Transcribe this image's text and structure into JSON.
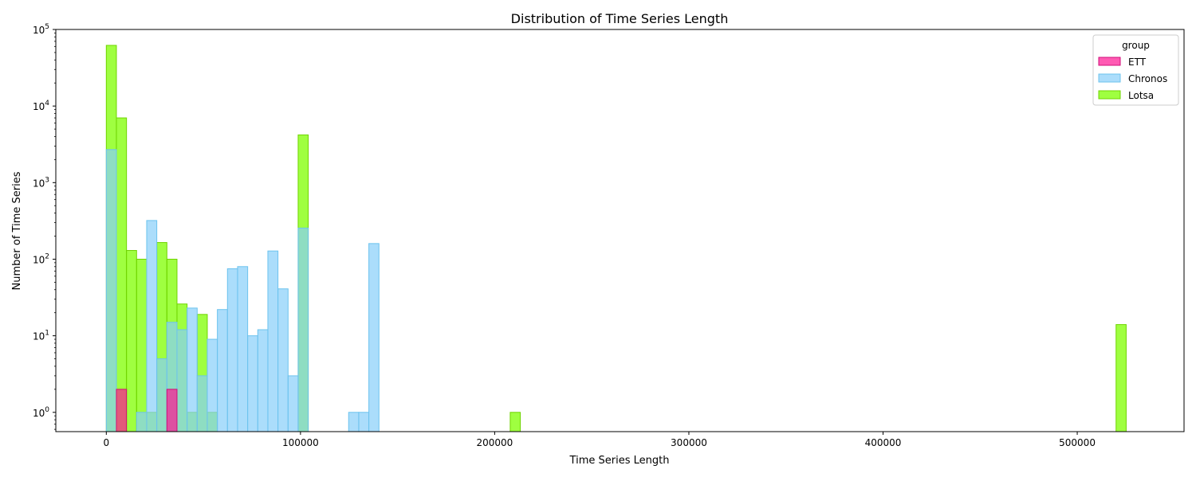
{
  "chart_data": {
    "type": "histogram",
    "title": "Distribution of Time Series Length",
    "xlabel": "Time Series Length",
    "ylabel": "Number of Time Series",
    "yscale": "log",
    "xlim": [
      -26000,
      555000
    ],
    "ylim": [
      0.56,
      100000
    ],
    "bin_width": 5200,
    "x_ticks": [
      0,
      100000,
      200000,
      300000,
      400000,
      500000
    ],
    "x_tick_labels": [
      "0",
      "100000",
      "200000",
      "300000",
      "400000",
      "500000"
    ],
    "y_ticks": [
      1,
      10,
      100,
      1000,
      10000,
      100000
    ],
    "y_tick_labels": [
      "10^0",
      "10^1",
      "10^2",
      "10^3",
      "10^4",
      "10^5"
    ],
    "legend": {
      "title": "group",
      "position": "top-right",
      "entries": [
        "ETT",
        "Chronos",
        "Lotsa"
      ]
    },
    "series": [
      {
        "name": "Lotsa",
        "fill": "#7fff00",
        "edge": "#6fd400",
        "opacity": 0.75,
        "bins": [
          {
            "start": 0,
            "value": 62000
          },
          {
            "start": 5200,
            "value": 7000
          },
          {
            "start": 10400,
            "value": 130
          },
          {
            "start": 15600,
            "value": 100
          },
          {
            "start": 20800,
            "value": 1
          },
          {
            "start": 26000,
            "value": 165
          },
          {
            "start": 31200,
            "value": 100
          },
          {
            "start": 36400,
            "value": 26
          },
          {
            "start": 41600,
            "value": 1
          },
          {
            "start": 46800,
            "value": 19
          },
          {
            "start": 52000,
            "value": 1
          },
          {
            "start": 98800,
            "value": 4200
          },
          {
            "start": 208000,
            "value": 1
          },
          {
            "start": 520000,
            "value": 14
          }
        ]
      },
      {
        "name": "Chronos",
        "fill": "#87cefa",
        "edge": "#6cc3ee",
        "opacity": 0.7,
        "bins": [
          {
            "start": 0,
            "value": 2700
          },
          {
            "start": 15600,
            "value": 1
          },
          {
            "start": 20800,
            "value": 320
          },
          {
            "start": 26000,
            "value": 5
          },
          {
            "start": 31200,
            "value": 15
          },
          {
            "start": 36400,
            "value": 12
          },
          {
            "start": 41600,
            "value": 23
          },
          {
            "start": 46800,
            "value": 3
          },
          {
            "start": 52000,
            "value": 9
          },
          {
            "start": 57200,
            "value": 22
          },
          {
            "start": 62400,
            "value": 75
          },
          {
            "start": 67600,
            "value": 80
          },
          {
            "start": 72800,
            "value": 10
          },
          {
            "start": 78000,
            "value": 12
          },
          {
            "start": 83200,
            "value": 128
          },
          {
            "start": 88400,
            "value": 41
          },
          {
            "start": 93600,
            "value": 3
          },
          {
            "start": 98800,
            "value": 255
          },
          {
            "start": 124800,
            "value": 1
          },
          {
            "start": 130000,
            "value": 1
          },
          {
            "start": 135200,
            "value": 160
          }
        ]
      },
      {
        "name": "ETT",
        "fill": "#ff1493",
        "edge": "#d10f78",
        "opacity": 0.7,
        "bins": [
          {
            "start": 5200,
            "value": 2
          },
          {
            "start": 31200,
            "value": 2
          }
        ]
      }
    ]
  }
}
